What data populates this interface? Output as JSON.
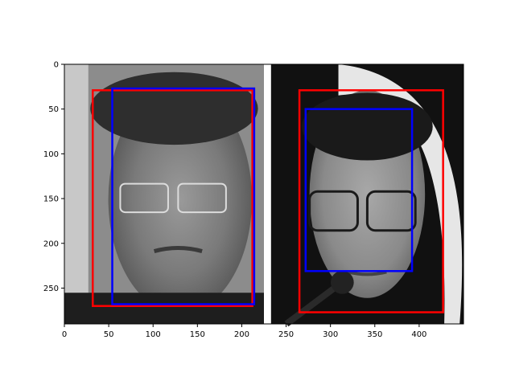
{
  "chart_data": {
    "type": "image-with-bounding-boxes",
    "title": "",
    "xlabel": "",
    "ylabel": "",
    "xlim": [
      0,
      450
    ],
    "ylim": [
      290,
      0
    ],
    "y_inverted": true,
    "xticks": [
      0,
      50,
      100,
      150,
      200,
      250,
      300,
      350,
      400
    ],
    "yticks": [
      0,
      50,
      100,
      150,
      200,
      250
    ],
    "grid": false,
    "images": [
      {
        "name": "left-photo",
        "x0": 0,
        "x1": 225,
        "y0": 0,
        "y1": 290
      },
      {
        "name": "right-photo",
        "x0": 233,
        "x1": 450,
        "y0": 0,
        "y1": 290
      }
    ],
    "boxes": [
      {
        "color": "#ff0000",
        "x0": 32,
        "y0": 29,
        "x1": 212,
        "y1": 270
      },
      {
        "color": "#0000ff",
        "x0": 54,
        "y0": 27,
        "x1": 214,
        "y1": 268
      },
      {
        "color": "#ff0000",
        "x0": 265,
        "y0": 29,
        "x1": 427,
        "y1": 277
      },
      {
        "color": "#0000ff",
        "x0": 272,
        "y0": 50,
        "x1": 392,
        "y1": 231
      }
    ]
  }
}
